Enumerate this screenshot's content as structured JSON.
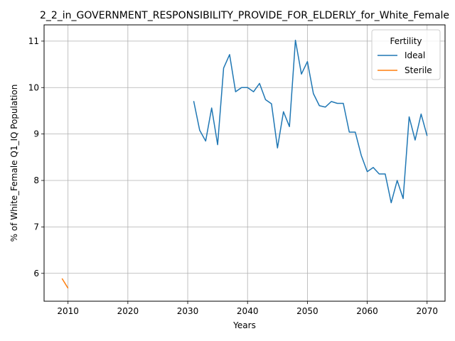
{
  "chart_data": {
    "type": "line",
    "title": "2_2_in_GOVERNMENT_RESPONSIBILITY_PROVIDE_FOR_ELDERLY_for_White_Female",
    "xlabel": "Years",
    "ylabel": "% of White_Female Q1_IQ Population",
    "xlim": [
      2006,
      2073
    ],
    "ylim": [
      5.4,
      11.35
    ],
    "xticks": [
      2010,
      2020,
      2030,
      2040,
      2050,
      2060,
      2070
    ],
    "yticks": [
      6,
      7,
      8,
      9,
      10,
      11
    ],
    "grid": true,
    "legend": {
      "title": "Fertility",
      "placement": "top-right"
    },
    "series": [
      {
        "name": "Ideal",
        "color": "#1f77b4",
        "x": [
          2031,
          2032,
          2033,
          2034,
          2035,
          2036,
          2037,
          2038,
          2039,
          2040,
          2041,
          2042,
          2043,
          2044,
          2045,
          2046,
          2047,
          2048,
          2049,
          2050,
          2051,
          2052,
          2053,
          2054,
          2055,
          2056,
          2057,
          2058,
          2059,
          2060,
          2061,
          2062,
          2063,
          2064,
          2065,
          2066,
          2067,
          2068,
          2069,
          2070
        ],
        "y": [
          9.71,
          9.08,
          8.85,
          9.56,
          8.77,
          10.42,
          10.71,
          9.91,
          10.0,
          10.0,
          9.91,
          10.09,
          9.74,
          9.65,
          8.7,
          9.48,
          9.16,
          11.02,
          10.29,
          10.56,
          9.87,
          9.61,
          9.58,
          9.7,
          9.66,
          9.66,
          9.04,
          9.04,
          8.54,
          8.19,
          8.28,
          8.14,
          8.14,
          7.52,
          8.0,
          7.61,
          9.37,
          8.87,
          9.43,
          8.96
        ]
      },
      {
        "name": "Sterile",
        "color": "#ff7f0e",
        "x": [
          2009,
          2010
        ],
        "y": [
          5.89,
          5.68
        ]
      }
    ]
  }
}
